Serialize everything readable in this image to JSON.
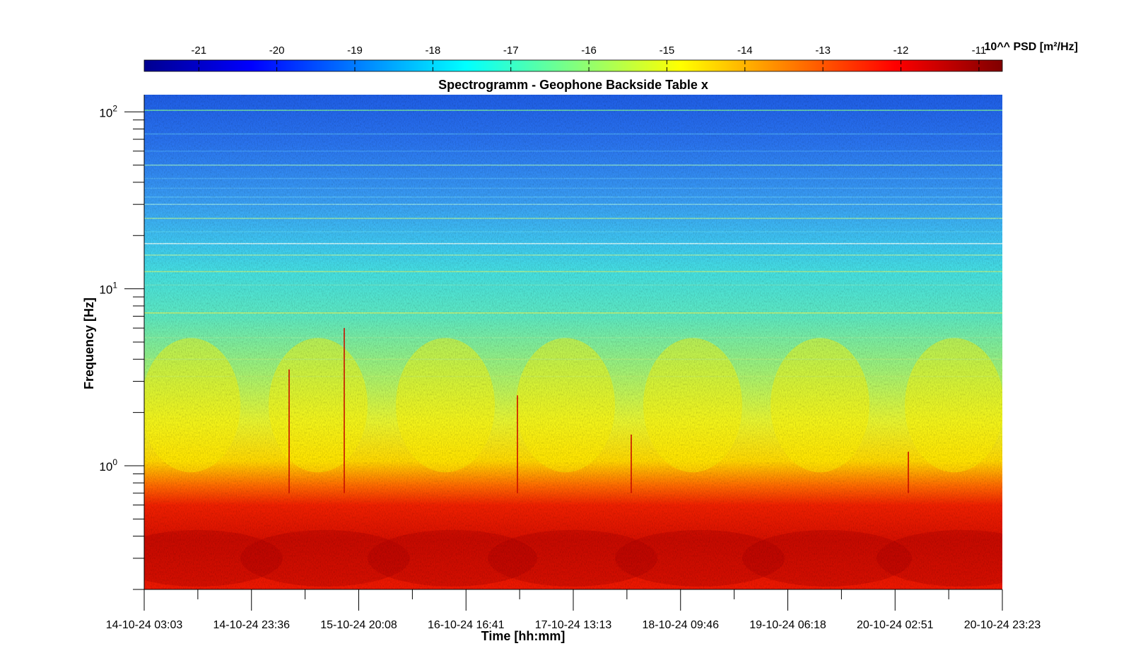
{
  "chart_data": {
    "type": "heatmap",
    "title": "Spectrogramm - Geophone Backside Table x",
    "xlabel": "Time [hh:mm]",
    "ylabel": "Frequency [Hz]",
    "x_ticks": [
      "14-10-24 03:03",
      "14-10-24 23:36",
      "15-10-24 20:08",
      "16-10-24 16:41",
      "17-10-24 13:13",
      "18-10-24 09:46",
      "19-10-24 06:18",
      "20-10-24 02:51",
      "20-10-24 23:23"
    ],
    "y_scale": "log",
    "y_ticks": [
      {
        "base": "10",
        "exp": "0",
        "value": 1
      },
      {
        "base": "10",
        "exp": "1",
        "value": 10
      },
      {
        "base": "10",
        "exp": "2",
        "value": 100
      }
    ],
    "ylim": [
      0.2,
      125
    ],
    "colorbar": {
      "label": "10^^ PSD [m²/Hz]",
      "ticks": [
        "-21",
        "-20",
        "-19",
        "-18",
        "-17",
        "-16",
        "-15",
        "-14",
        "-13",
        "-12",
        "-11"
      ],
      "range": [
        -21.7,
        -10.7
      ],
      "colormap": "jet"
    },
    "description_levels": {
      "high_freq_above_30Hz": -20,
      "band_10_to_30Hz": -18.5,
      "band_1_to_10Hz": -16.5,
      "band_0_5_to_1Hz": -14.5,
      "below_0_5Hz": -12.5
    }
  }
}
